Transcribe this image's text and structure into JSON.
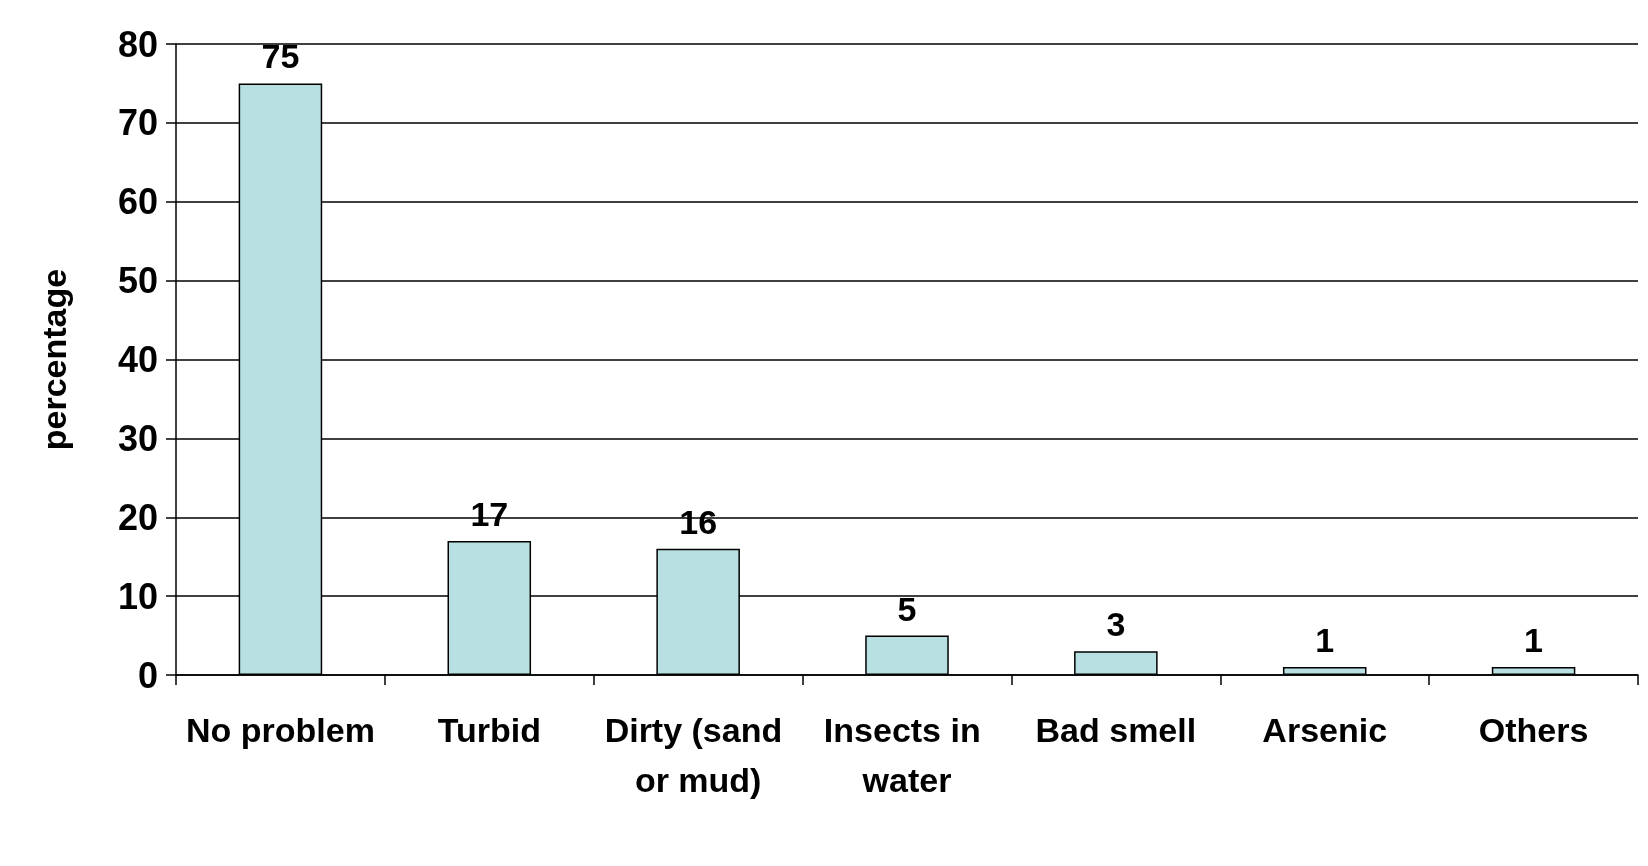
{
  "chart_data": {
    "type": "bar",
    "ylabel": "percentage",
    "categories": [
      "No problem",
      "Turbid",
      "Dirty (sand or mud)",
      "Insects in water",
      "Bad smell",
      "Arsenic",
      "Others"
    ],
    "values": [
      75,
      17,
      16,
      5,
      3,
      1,
      1
    ],
    "color": "#b8e0e3",
    "ylim": [
      0,
      80
    ],
    "yticks": [
      0,
      10,
      20,
      30,
      40,
      50,
      60,
      70,
      80
    ],
    "grid": "y",
    "data_labels": true
  }
}
